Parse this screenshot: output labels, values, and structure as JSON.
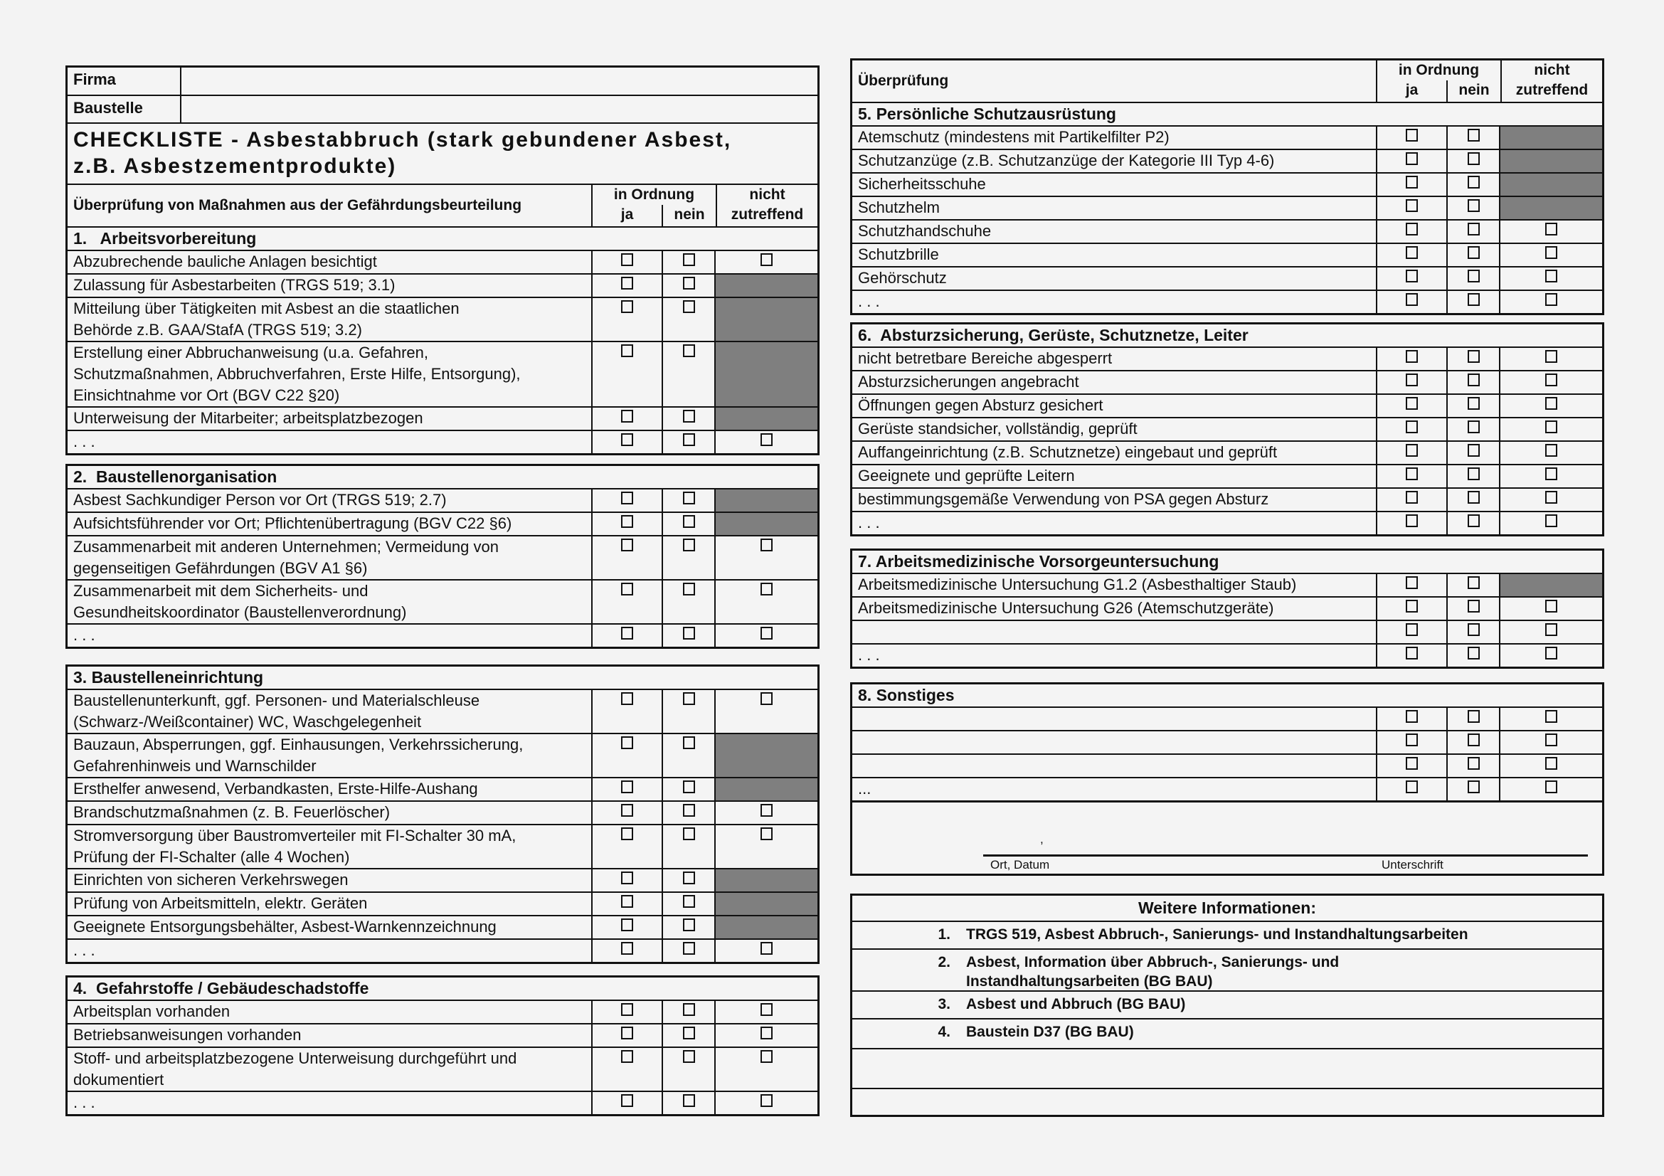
{
  "header": {
    "firma_label": "Firma",
    "firma_value": "",
    "baustelle_label": "Baustelle",
    "baustelle_value": "",
    "title": "CHECKLISTE - Asbestabbruch (stark gebundener Asbest,\nz.B. Asbestzementprodukte)",
    "column_header": "Überprüfung von Maßnahmen aus der Gefährdungsbeurteilung",
    "right_column_header": "Überprüfung",
    "in_ordnung": "in Ordnung",
    "ja": "ja",
    "nein": "nein",
    "nicht_zutreffend": "nicht\nzutreffend"
  },
  "sections": [
    {
      "title": "1.   Arbeitsvorbereitung",
      "rows": [
        {
          "text": "Abzubrechende bauliche Anlagen besichtigt",
          "na_disabled": false
        },
        {
          "text": "Zulassung für Asbestarbeiten (TRGS 519; 3.1)",
          "na_disabled": true
        },
        {
          "text": "Mitteilung über Tätigkeiten mit Asbest an die staatlichen\nBehörde z.B. GAA/StafA (TRGS 519; 3.2)",
          "na_disabled": true
        },
        {
          "text": "Erstellung einer Abbruchanweisung (u.a. Gefahren,\nSchutzmaßnahmen, Abbruchverfahren, Erste Hilfe, Entsorgung),\nEinsichtnahme vor Ort (BGV C22 §20)",
          "na_disabled": true
        },
        {
          "text": "Unterweisung der Mitarbeiter; arbeitsplatzbezogen",
          "na_disabled": true
        },
        {
          "text": ". . .",
          "na_disabled": false
        }
      ]
    },
    {
      "title": "2.  Baustellenorganisation",
      "rows": [
        {
          "text": "Asbest Sachkundiger Person vor Ort (TRGS 519; 2.7)",
          "na_disabled": true
        },
        {
          "text": "Aufsichtsführender vor Ort; Pflichtenübertragung (BGV C22 §6)",
          "na_disabled": true
        },
        {
          "text": "Zusammenarbeit mit anderen Unternehmen; Vermeidung von\ngegenseitigen Gefährdungen (BGV A1 §6)",
          "na_disabled": false
        },
        {
          "text": "Zusammenarbeit mit dem Sicherheits- und\nGesundheitskoordinator (Baustellenverordnung)",
          "na_disabled": false
        },
        {
          "text": ". . .",
          "na_disabled": false
        }
      ]
    },
    {
      "title": "3. Baustelleneinrichtung",
      "rows": [
        {
          "text": "Baustellenunterkunft, ggf. Personen- und Materialschleuse\n(Schwarz-/Weißcontainer) WC, Waschgelegenheit",
          "na_disabled": false
        },
        {
          "text": "Bauzaun, Absperrungen, ggf. Einhausungen, Verkehrssicherung,\nGefahrenhinweis und Warnschilder",
          "na_disabled": true
        },
        {
          "text": "Ersthelfer anwesend, Verbandkasten, Erste-Hilfe-Aushang",
          "na_disabled": true
        },
        {
          "text": "Brandschutzmaßnahmen (z. B. Feuerlöscher)",
          "na_disabled": false
        },
        {
          "text": "Stromversorgung über Baustromverteiler mit FI-Schalter 30 mA,\nPrüfung der FI-Schalter (alle 4 Wochen)",
          "na_disabled": false
        },
        {
          "text": "Einrichten von sicheren Verkehrswegen",
          "na_disabled": true
        },
        {
          "text": "Prüfung von Arbeitsmitteln, elektr. Geräten",
          "na_disabled": true
        },
        {
          "text": "Geeignete Entsorgungsbehälter, Asbest-Warnkennzeichnung",
          "na_disabled": true
        },
        {
          "text": ". . .",
          "na_disabled": false
        }
      ]
    },
    {
      "title": "4.  Gefahrstoffe / Gebäudeschadstoffe",
      "rows": [
        {
          "text": "Arbeitsplan vorhanden",
          "na_disabled": false
        },
        {
          "text": "Betriebsanweisungen vorhanden",
          "na_disabled": false
        },
        {
          "text": "Stoff- und arbeitsplatzbezogene Unterweisung durchgeführt und\ndokumentiert",
          "na_disabled": false
        },
        {
          "text": ". . .",
          "na_disabled": false
        }
      ]
    },
    {
      "title": "5. Persönliche Schutzausrüstung",
      "rows": [
        {
          "text": "Atemschutz (mindestens mit Partikelfilter P2)",
          "na_disabled": true
        },
        {
          "text": "Schutzanzüge (z.B. Schutzanzüge der Kategorie III Typ 4-6)",
          "na_disabled": true
        },
        {
          "text": "Sicherheitsschuhe",
          "na_disabled": true
        },
        {
          "text": "Schutzhelm",
          "na_disabled": true
        },
        {
          "text": "Schutzhandschuhe",
          "na_disabled": false
        },
        {
          "text": "Schutzbrille",
          "na_disabled": false
        },
        {
          "text": "Gehörschutz",
          "na_disabled": false
        },
        {
          "text": ". . .",
          "na_disabled": false
        }
      ]
    },
    {
      "title": "6.  Absturzsicherung, Gerüste, Schutznetze, Leiter",
      "rows": [
        {
          "text": "nicht betretbare Bereiche abgesperrt",
          "na_disabled": false
        },
        {
          "text": "Absturzsicherungen angebracht",
          "na_disabled": false
        },
        {
          "text": "Öffnungen gegen Absturz gesichert",
          "na_disabled": false
        },
        {
          "text": "Gerüste standsicher, vollständig, geprüft",
          "na_disabled": false
        },
        {
          "text": "Auffangeinrichtung (z.B. Schutznetze) eingebaut und geprüft",
          "na_disabled": false
        },
        {
          "text": "Geeignete und geprüfte Leitern",
          "na_disabled": false
        },
        {
          "text": "bestimmungsgemäße Verwendung von PSA gegen Absturz",
          "na_disabled": false
        },
        {
          "text": ". . .",
          "na_disabled": false
        }
      ]
    },
    {
      "title": "7. Arbeitsmedizinische Vorsorgeuntersuchung",
      "rows": [
        {
          "text": "Arbeitsmedizinische Untersuchung G1.2 (Asbesthaltiger Staub)",
          "na_disabled": true
        },
        {
          "text": "Arbeitsmedizinische Untersuchung G26 (Atemschutzgeräte)",
          "na_disabled": false
        },
        {
          "text": "",
          "na_disabled": false
        },
        {
          "text": ". . .",
          "na_disabled": false
        }
      ]
    },
    {
      "title": "8. Sonstiges",
      "rows": [
        {
          "text": "",
          "na_disabled": false
        },
        {
          "text": "",
          "na_disabled": false
        },
        {
          "text": "",
          "na_disabled": false
        },
        {
          "text": "...",
          "na_disabled": false
        }
      ]
    }
  ],
  "signature": {
    "comma": ",",
    "ort_datum": "Ort, Datum",
    "unterschrift": "Unterschrift"
  },
  "weitere": {
    "title": "Weitere Informationen:",
    "items": [
      {
        "num": "1.",
        "text": "TRGS 519,  Asbest Abbruch-, Sanierungs- und Instandhaltungsarbeiten"
      },
      {
        "num": "2.",
        "text": "Asbest, Information über Abbruch-, Sanierungs- und\n Instandhaltungsarbeiten  (BG BAU)"
      },
      {
        "num": "3.",
        "text": "Asbest und Abbruch (BG BAU)"
      },
      {
        "num": "4.",
        "text": "Baustein D37 (BG BAU)"
      },
      {
        "num": "",
        "text": ""
      },
      {
        "num": "",
        "text": ""
      }
    ]
  },
  "colors": {
    "border": "#111111",
    "disabled_cell": "#7f7f7f",
    "background": "#f3f3f3"
  }
}
